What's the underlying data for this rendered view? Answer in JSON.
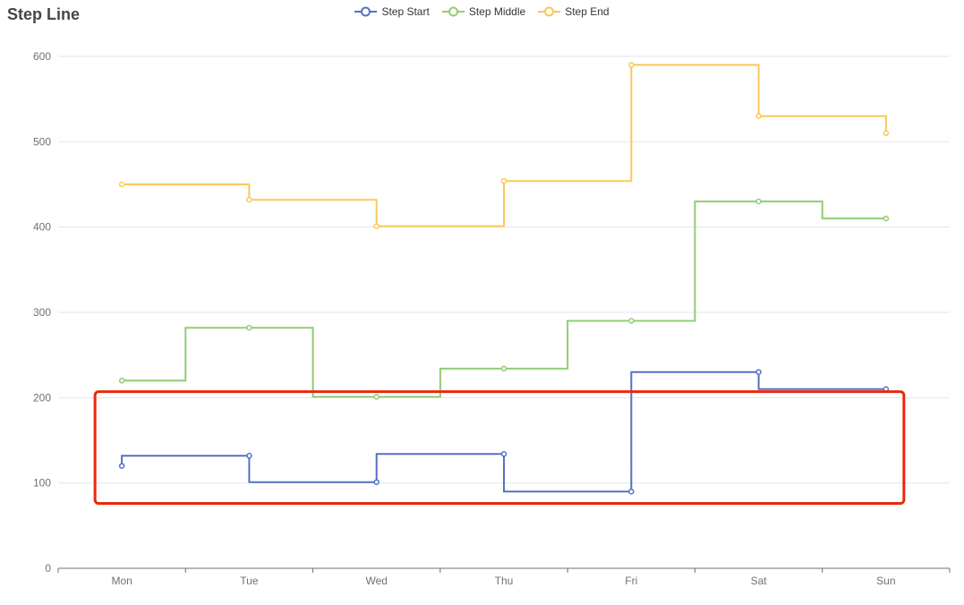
{
  "chart_data": {
    "type": "line",
    "step_line": true,
    "title": "Step Line",
    "categories": [
      "Mon",
      "Tue",
      "Wed",
      "Thu",
      "Fri",
      "Sat",
      "Sun"
    ],
    "ylim": [
      0,
      600
    ],
    "yticks": [
      0,
      100,
      200,
      300,
      400,
      500,
      600
    ],
    "grid": true,
    "legend_position": "top-center",
    "series": [
      {
        "name": "Step Start",
        "step": "start",
        "color": "#5470c6",
        "values": [
          120,
          132,
          101,
          134,
          90,
          230,
          210
        ]
      },
      {
        "name": "Step Middle",
        "step": "middle",
        "color": "#91cc75",
        "values": [
          220,
          282,
          201,
          234,
          290,
          430,
          410
        ]
      },
      {
        "name": "Step End",
        "step": "end",
        "color": "#fac858",
        "values": [
          450,
          432,
          401,
          454,
          590,
          530,
          510
        ]
      }
    ],
    "annotation": {
      "type": "highlight-box",
      "color": "#e8290b",
      "x_from": "Mon",
      "x_to": "Sun",
      "y_from": 76,
      "y_to": 207
    }
  }
}
